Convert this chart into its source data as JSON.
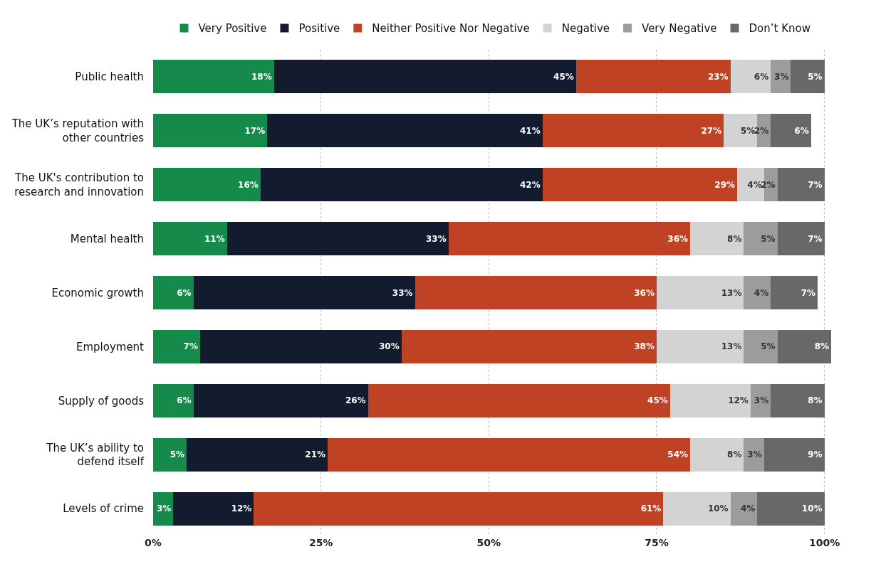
{
  "chart_data": {
    "type": "bar",
    "orientation": "horizontal",
    "stacked": true,
    "categories": [
      "Public health",
      "The UK’s reputation with other countries",
      "The UK's contribution to research and innovation",
      "Mental health",
      "Economic growth",
      "Employment",
      "Supply of goods",
      "The UK’s ability to defend itself",
      "Levels of crime"
    ],
    "series": [
      {
        "name": "Very Positive",
        "color": "#168a4a",
        "values": [
          18,
          17,
          16,
          11,
          6,
          7,
          6,
          5,
          3
        ],
        "value_labels": [
          "18%",
          "17%",
          "16%",
          "11%",
          "6%",
          "7%",
          "6%",
          "5%",
          "3%"
        ]
      },
      {
        "name": "Positive",
        "color": "#121c2e",
        "values": [
          45,
          41,
          42,
          33,
          33,
          30,
          26,
          21,
          12
        ],
        "value_labels": [
          "45%",
          "41%",
          "42%",
          "33%",
          "33%",
          "30%",
          "26%",
          "21%",
          "12%"
        ]
      },
      {
        "name": "Neither Positive Nor Negative",
        "color": "#c04224",
        "values": [
          23,
          27,
          29,
          36,
          36,
          38,
          45,
          54,
          61
        ],
        "value_labels": [
          "23%",
          "27%",
          "29%",
          "36%",
          "36%",
          "38%",
          "45%",
          "54%",
          "61%"
        ]
      },
      {
        "name": "Negative",
        "color": "#d3d3d3",
        "values": [
          6,
          5,
          4,
          8,
          13,
          13,
          12,
          8,
          10
        ],
        "value_labels": [
          "6%",
          "5%",
          "4%",
          "8%",
          "13%",
          "13%",
          "12%",
          "8%",
          "10%"
        ]
      },
      {
        "name": "Very Negative",
        "color": "#9c9c9c",
        "values": [
          3,
          2,
          2,
          5,
          4,
          5,
          3,
          3,
          4
        ],
        "value_labels": [
          "3%",
          "2%",
          "2%",
          "5%",
          "4%",
          "5%",
          "3%",
          "3%",
          "4%"
        ]
      },
      {
        "name": "Don’t Know",
        "color": "#686868",
        "values": [
          5,
          6,
          7,
          7,
          7,
          8,
          8,
          9,
          10
        ],
        "value_labels": [
          "5%",
          "6%",
          "7%",
          "7%",
          "7%",
          "8%",
          "8%",
          "9%",
          "10%"
        ]
      }
    ],
    "xlim": [
      0,
      101
    ],
    "xticks": [
      {
        "value": 0,
        "label": "0%"
      },
      {
        "value": 25,
        "label": "25%"
      },
      {
        "value": 50,
        "label": "50%"
      },
      {
        "value": 75,
        "label": "75%"
      },
      {
        "value": 100,
        "label": "100%"
      }
    ],
    "grid": "x",
    "legend": "top"
  }
}
